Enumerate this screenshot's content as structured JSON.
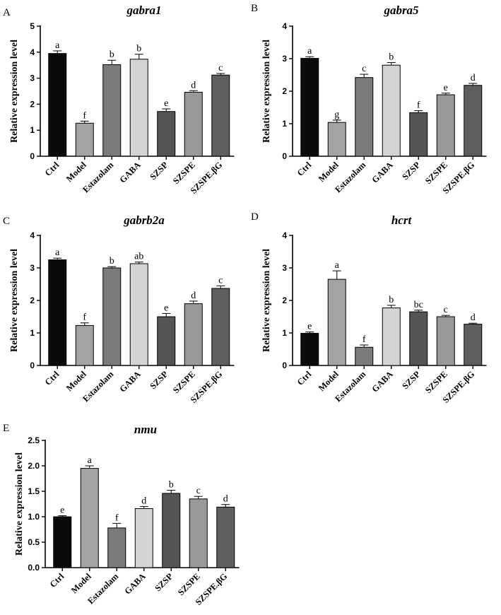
{
  "categories": [
    "Ctrl",
    "Model",
    "Estazolam",
    "GABA",
    "SZSP",
    "SZSPE",
    "SZSPE.βG"
  ],
  "bar_colors": [
    "#0a0a0a",
    "#a3a3a3",
    "#7b7b7b",
    "#d4d4d4",
    "#545454",
    "#999999",
    "#5e5e5e"
  ],
  "chart_data": [
    {
      "type": "bar",
      "panel": "A",
      "title": "gabra1",
      "ylabel": "Relative  expression level",
      "ylim": [
        0,
        5
      ],
      "yticks": [
        "0",
        "1",
        "2",
        "3",
        "4",
        "5"
      ],
      "categories": [
        "Ctrl",
        "Model",
        "Estazolam",
        "GABA",
        "SZSP",
        "SZSPE",
        "SZSPE.βG"
      ],
      "values": [
        3.95,
        1.27,
        3.52,
        3.73,
        1.72,
        2.46,
        3.12
      ],
      "errors": [
        0.1,
        0.08,
        0.17,
        0.19,
        0.1,
        0.06,
        0.06
      ],
      "significance": [
        "a",
        "f",
        "b",
        "b",
        "e",
        "d",
        "c"
      ]
    },
    {
      "type": "bar",
      "panel": "B",
      "title": "gabra5",
      "ylabel": "Relative  expression level",
      "ylim": [
        0,
        4
      ],
      "yticks": [
        "0",
        "1",
        "2",
        "3",
        "4"
      ],
      "categories": [
        "Ctrl",
        "Model",
        "Estazolam",
        "GABA",
        "SZSP",
        "SZSPE",
        "SZSPE.βG"
      ],
      "values": [
        3.01,
        1.04,
        2.42,
        2.8,
        1.34,
        1.89,
        2.18
      ],
      "errors": [
        0.05,
        0.07,
        0.1,
        0.08,
        0.06,
        0.05,
        0.06
      ],
      "significance": [
        "a",
        "g",
        "c",
        "b",
        "f",
        "e",
        "d"
      ]
    },
    {
      "type": "bar",
      "panel": "C",
      "title": "gabrb2a",
      "ylabel": "Relative  expression level",
      "ylim": [
        0,
        4
      ],
      "yticks": [
        "0",
        "1",
        "2",
        "3",
        "4"
      ],
      "categories": [
        "Ctrl",
        "Model",
        "Estazolam",
        "GABA",
        "SZSP",
        "SZSPE",
        "SZSPE.βG"
      ],
      "values": [
        3.25,
        1.23,
        3.0,
        3.13,
        1.5,
        1.9,
        2.37
      ],
      "errors": [
        0.05,
        0.08,
        0.04,
        0.05,
        0.1,
        0.08,
        0.08
      ],
      "significance": [
        "a",
        "f",
        "b",
        "ab",
        "e",
        "d",
        "c"
      ]
    },
    {
      "type": "bar",
      "panel": "D",
      "title": "hcrt",
      "ylabel": "Relative  expression level",
      "ylim": [
        0,
        4
      ],
      "yticks": [
        "0",
        "1",
        "2",
        "3",
        "4"
      ],
      "categories": [
        "Ctrl",
        "Model",
        "Estazolam",
        "GABA",
        "SZSP",
        "SZSPE",
        "SZSPE.βG"
      ],
      "values": [
        0.99,
        2.65,
        0.56,
        1.77,
        1.65,
        1.5,
        1.27
      ],
      "errors": [
        0.04,
        0.26,
        0.07,
        0.08,
        0.05,
        0.04,
        0.03
      ],
      "significance": [
        "e",
        "a",
        "f",
        "b",
        "bc",
        "c",
        "d"
      ]
    },
    {
      "type": "bar",
      "panel": "E",
      "title": "nmu",
      "ylabel": "Relative  expression level",
      "ylim": [
        0,
        2.5
      ],
      "yticks": [
        "0.0",
        "0.5",
        "1.0",
        "1.5",
        "2.0",
        "2.5"
      ],
      "categories": [
        "Ctrl",
        "Model",
        "Estazolam",
        "GABA",
        "SZSP",
        "SZSPE",
        "SZSPE.βG"
      ],
      "values": [
        1.0,
        1.95,
        0.78,
        1.16,
        1.46,
        1.35,
        1.19
      ],
      "errors": [
        0.02,
        0.05,
        0.09,
        0.04,
        0.06,
        0.05,
        0.05
      ],
      "significance": [
        "e",
        "a",
        "f",
        "d",
        "b",
        "c",
        "d"
      ]
    }
  ]
}
